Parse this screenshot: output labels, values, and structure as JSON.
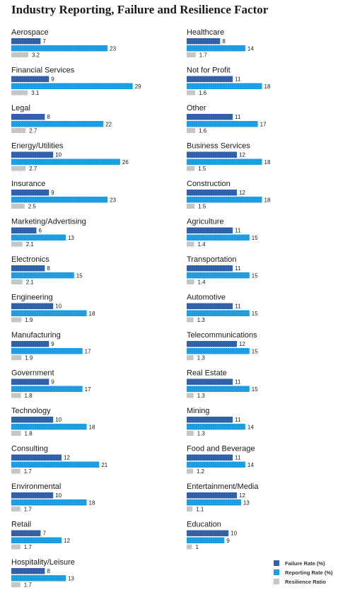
{
  "chart_data": {
    "type": "bar",
    "orientation": "horizontal",
    "title": "Industry Reporting, Failure and Resilience Factor",
    "legend": "bottom-right",
    "series": [
      {
        "name": "Failure Rate (%)",
        "color": "#2f5ea8"
      },
      {
        "name": "Reporting Rate (%)",
        "color": "#1a9be0"
      },
      {
        "name": "Resilience Ratio",
        "color": "#c8c8c8"
      }
    ],
    "columns": [
      [
        {
          "category": "Aerospace",
          "failure": 7,
          "reporting": 23,
          "resilience": "3.2"
        },
        {
          "category": "Financial Services",
          "failure": 9,
          "reporting": 29,
          "resilience": "3.1"
        },
        {
          "category": "Legal",
          "failure": 8,
          "reporting": 22,
          "resilience": "2.7"
        },
        {
          "category": "Energy/Utilities",
          "failure": 10,
          "reporting": 26,
          "resilience": "2.7"
        },
        {
          "category": "Insurance",
          "failure": 9,
          "reporting": 23,
          "resilience": "2.5"
        },
        {
          "category": "Marketing/Advertising",
          "failure": 6,
          "reporting": 13,
          "resilience": "2.1"
        },
        {
          "category": "Electronics",
          "failure": 8,
          "reporting": 15,
          "resilience": "2.1"
        },
        {
          "category": "Engineering",
          "failure": 10,
          "reporting": 18,
          "resilience": "1.9"
        },
        {
          "category": "Manufacturing",
          "failure": 9,
          "reporting": 17,
          "resilience": "1.9"
        },
        {
          "category": "Government",
          "failure": 9,
          "reporting": 17,
          "resilience": "1.8"
        },
        {
          "category": "Technology",
          "failure": 10,
          "reporting": 18,
          "resilience": "1.8"
        },
        {
          "category": "Consulting",
          "failure": 12,
          "reporting": 21,
          "resilience": "1.7"
        },
        {
          "category": "Environmental",
          "failure": 10,
          "reporting": 18,
          "resilience": "1.7"
        },
        {
          "category": "Retail",
          "failure": 7,
          "reporting": 12,
          "resilience": "1.7"
        },
        {
          "category": "Hospitality/Leisure",
          "failure": 8,
          "reporting": 13,
          "resilience": "1.7"
        }
      ],
      [
        {
          "category": "Healthcare",
          "failure": 8,
          "reporting": 14,
          "resilience": "1.7"
        },
        {
          "category": "Not for Profit",
          "failure": 11,
          "reporting": 18,
          "resilience": "1.6"
        },
        {
          "category": "Other",
          "failure": 11,
          "reporting": 17,
          "resilience": "1.6"
        },
        {
          "category": "Business Services",
          "failure": 12,
          "reporting": 18,
          "resilience": "1.5"
        },
        {
          "category": "Construction",
          "failure": 12,
          "reporting": 18,
          "resilience": "1.5"
        },
        {
          "category": "Agriculture",
          "failure": 11,
          "reporting": 15,
          "resilience": "1.4"
        },
        {
          "category": "Transportation",
          "failure": 11,
          "reporting": 15,
          "resilience": "1.4"
        },
        {
          "category": "Automotive",
          "failure": 11,
          "reporting": 15,
          "resilience": "1.3"
        },
        {
          "category": "Telecommunications",
          "failure": 12,
          "reporting": 15,
          "resilience": "1.3"
        },
        {
          "category": "Real Estate",
          "failure": 11,
          "reporting": 15,
          "resilience": "1.3"
        },
        {
          "category": "Mining",
          "failure": 11,
          "reporting": 14,
          "resilience": "1.3"
        },
        {
          "category": "Food and Beverage",
          "failure": 11,
          "reporting": 14,
          "resilience": "1.2"
        },
        {
          "category": "Entertainment/Media",
          "failure": 12,
          "reporting": 13,
          "resilience": "1.1"
        },
        {
          "category": "Education",
          "failure": 10,
          "reporting": 9,
          "resilience": "1"
        }
      ]
    ]
  }
}
